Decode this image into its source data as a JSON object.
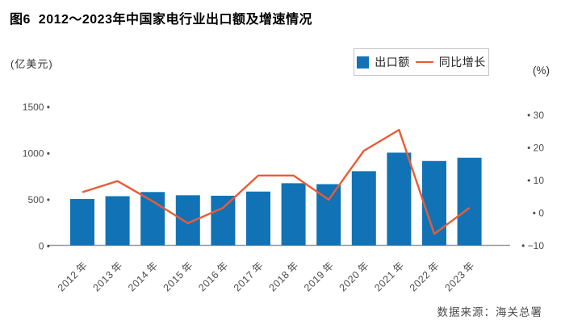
{
  "page": {
    "title": "图6  2012～2023年中国家电行业出口额及增速情况",
    "source_note": "数据来源：海关总署"
  },
  "legend": {
    "bar_label": "出口额",
    "line_label": "同比增长"
  },
  "axes": {
    "left_unit": "(亿美元)",
    "right_unit": "(%)"
  },
  "colors": {
    "bar": "#1173b6",
    "line": "#e95c35",
    "axis": "#999999",
    "tick_dot": "#1a1a1a"
  },
  "chart_data": {
    "type": "bar",
    "subtype": "bar-line combo, dual axis",
    "title": "2012～2023年中国家电行业出口额及增速情况",
    "categories": [
      "2012年",
      "2013年",
      "2014年",
      "2015年",
      "2016年",
      "2017年",
      "2018年",
      "2019年",
      "2020年",
      "2021年",
      "2022年",
      "2023年"
    ],
    "series": [
      {
        "name": "出口额",
        "type": "bar",
        "axis": "left",
        "unit": "亿美元",
        "values": [
          505,
          535,
          580,
          545,
          540,
          585,
          675,
          665,
          805,
          1005,
          915,
          950
        ]
      },
      {
        "name": "同比增长",
        "type": "line",
        "axis": "right",
        "unit": "%",
        "values": [
          6.3,
          9.7,
          3.5,
          -3.2,
          1.5,
          11.4,
          11.4,
          4.0,
          19.0,
          25.4,
          -6.5,
          1.5
        ]
      }
    ],
    "left_axis": {
      "label": "(亿美元)",
      "range": [
        0,
        1500
      ],
      "ticks": [
        0,
        500,
        1000,
        1500
      ]
    },
    "right_axis": {
      "label": "(%)",
      "range": [
        -10,
        30
      ],
      "ticks": [
        -10,
        0,
        10,
        20,
        30
      ]
    },
    "grid": false,
    "legend_position": "top-right"
  }
}
